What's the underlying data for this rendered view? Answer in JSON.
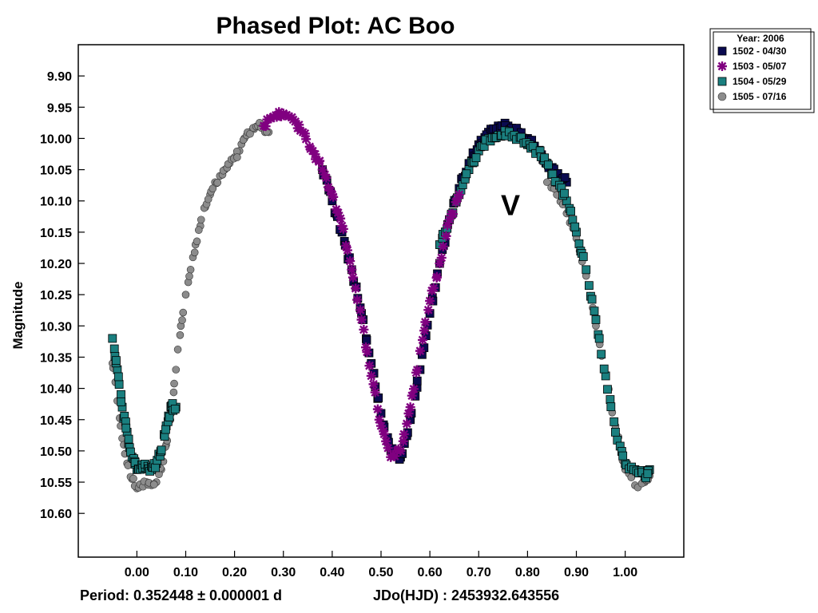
{
  "chart_data": {
    "type": "scatter",
    "title": "Phased Plot: AC Boo",
    "xlabel": "",
    "ylabel": "Magnitude",
    "xlim": [
      -0.12,
      1.12
    ],
    "ylim": [
      9.85,
      10.67
    ],
    "y_inverted": true,
    "x_ticks": [
      "0.00",
      "0.10",
      "0.20",
      "0.30",
      "0.40",
      "0.50",
      "0.60",
      "0.70",
      "0.80",
      "0.90",
      "1.00"
    ],
    "x_tick_values": [
      0,
      0.1,
      0.2,
      0.3,
      0.4,
      0.5,
      0.6,
      0.7,
      0.8,
      0.9,
      1.0
    ],
    "y_ticks": [
      "9.90",
      "9.95",
      "10.00",
      "10.05",
      "10.10",
      "10.15",
      "10.20",
      "10.25",
      "10.30",
      "10.35",
      "10.40",
      "10.45",
      "10.50",
      "10.55",
      "10.60"
    ],
    "y_tick_values": [
      9.9,
      9.95,
      10.0,
      10.05,
      10.1,
      10.15,
      10.2,
      10.25,
      10.3,
      10.35,
      10.4,
      10.45,
      10.5,
      10.55,
      10.6
    ],
    "annotation": "V",
    "annotation_pos": [
      0.765,
      10.105
    ],
    "grid": false,
    "legend": {
      "placement": "outside-top-right",
      "title": "Year: 2006",
      "entries": [
        {
          "label": "1502 - 04/30",
          "color": "#0a0a50",
          "marker": "square"
        },
        {
          "label": "1503 - 05/07",
          "color": "#800080",
          "marker": "asterisk"
        },
        {
          "label": "1504 - 05/29",
          "color": "#1a7f7f",
          "marker": "square"
        },
        {
          "label": "1505 - 07/16",
          "color": "#8c8c8c",
          "marker": "circle"
        }
      ]
    },
    "series": [
      {
        "name": "1502 - 04/30",
        "phase_range": [
          0.38,
          0.88
        ],
        "x": [
          0.38,
          0.4,
          0.42,
          0.44,
          0.46,
          0.48,
          0.5,
          0.52,
          0.54,
          0.56,
          0.58,
          0.6,
          0.62,
          0.64,
          0.66,
          0.68,
          0.7,
          0.72,
          0.74,
          0.76,
          0.78,
          0.8,
          0.82,
          0.84,
          0.86,
          0.88
        ],
        "y": [
          10.05,
          10.1,
          10.15,
          10.21,
          10.28,
          10.36,
          10.44,
          10.5,
          10.51,
          10.45,
          10.37,
          10.28,
          10.2,
          10.13,
          10.08,
          10.04,
          10.01,
          9.99,
          9.98,
          9.98,
          9.99,
          10.0,
          10.02,
          10.04,
          10.06,
          10.07
        ]
      },
      {
        "name": "1503 - 05/07",
        "phase_range": [
          0.25,
          0.7
        ],
        "x": [
          0.26,
          0.28,
          0.3,
          0.32,
          0.34,
          0.36,
          0.38,
          0.4,
          0.42,
          0.44,
          0.46,
          0.48,
          0.5,
          0.52,
          0.54,
          0.56,
          0.58,
          0.6,
          0.62,
          0.64,
          0.66
        ],
        "y": [
          9.98,
          9.965,
          9.96,
          9.97,
          9.99,
          10.02,
          10.05,
          10.09,
          10.14,
          10.21,
          10.29,
          10.38,
          10.46,
          10.51,
          10.5,
          10.43,
          10.34,
          10.26,
          10.2,
          10.13,
          10.09
        ]
      },
      {
        "name": "1504 - 05/29",
        "phase_range": [
          -0.05,
          1.05
        ],
        "x": [
          -0.05,
          -0.04,
          -0.03,
          -0.02,
          -0.01,
          0.0,
          0.01,
          0.02,
          0.03,
          0.04,
          0.05,
          0.06,
          0.07,
          0.08,
          0.62,
          0.64,
          0.66,
          0.68,
          0.7,
          0.72,
          0.74,
          0.76,
          0.78,
          0.8,
          0.82,
          0.84,
          0.86,
          0.88,
          0.9,
          0.92,
          0.94,
          0.96,
          0.98,
          1.0,
          1.02,
          1.04,
          1.05
        ],
        "y": [
          10.32,
          10.37,
          10.43,
          10.47,
          10.51,
          10.53,
          10.525,
          10.525,
          10.53,
          10.52,
          10.5,
          10.46,
          10.43,
          10.43,
          10.17,
          10.13,
          10.09,
          10.05,
          10.02,
          10.0,
          9.995,
          9.99,
          10.0,
          10.01,
          10.02,
          10.04,
          10.07,
          10.1,
          10.15,
          10.21,
          10.29,
          10.38,
          10.47,
          10.52,
          10.53,
          10.54,
          10.53
        ]
      },
      {
        "name": "1505 - 07/16",
        "phase_range": [
          -0.05,
          1.05
        ],
        "x": [
          -0.05,
          -0.04,
          -0.03,
          -0.02,
          -0.01,
          0.0,
          0.01,
          0.02,
          0.03,
          0.04,
          0.05,
          0.06,
          0.07,
          0.08,
          0.09,
          0.1,
          0.11,
          0.12,
          0.13,
          0.14,
          0.15,
          0.16,
          0.17,
          0.18,
          0.19,
          0.2,
          0.21,
          0.22,
          0.23,
          0.24,
          0.25,
          0.26,
          0.27,
          0.84,
          0.86,
          0.88,
          0.9,
          0.92,
          0.94,
          0.96,
          0.98,
          1.0,
          1.02,
          1.04,
          1.05
        ],
        "y": [
          10.36,
          10.42,
          10.48,
          10.52,
          10.545,
          10.56,
          10.555,
          10.55,
          10.555,
          10.55,
          10.53,
          10.49,
          10.44,
          10.37,
          10.3,
          10.25,
          10.21,
          10.17,
          10.14,
          10.11,
          10.09,
          10.07,
          10.06,
          10.05,
          10.04,
          10.03,
          10.02,
          10.0,
          9.99,
          9.985,
          9.98,
          9.985,
          9.99,
          10.07,
          10.09,
          10.12,
          10.16,
          10.22,
          10.3,
          10.38,
          10.46,
          10.53,
          10.555,
          10.55,
          10.54
        ]
      }
    ],
    "footer": {
      "period": "Period: 0.352448 ± 0.000001 d",
      "epoch": "JDo(HJD) : 2453932.643556"
    }
  }
}
